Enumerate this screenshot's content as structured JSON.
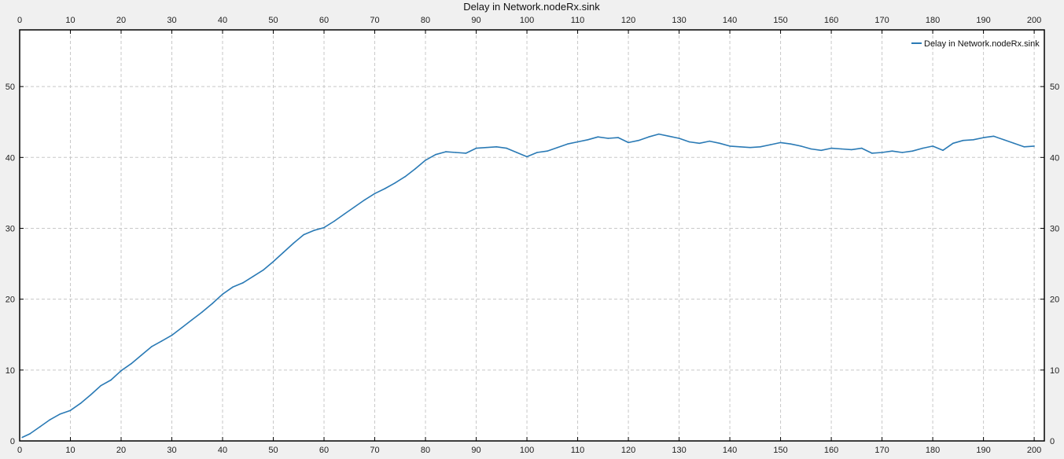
{
  "chart_data": {
    "type": "line",
    "title": "Delay in Network.nodeRx.sink",
    "xlabel": "",
    "ylabel": "",
    "xlim": [
      0,
      202
    ],
    "ylim": [
      0,
      58
    ],
    "xticks": [
      0,
      10,
      20,
      30,
      40,
      50,
      60,
      70,
      80,
      90,
      100,
      110,
      120,
      130,
      140,
      150,
      160,
      170,
      180,
      190,
      200
    ],
    "yticks": [
      0,
      10,
      20,
      30,
      40,
      50
    ],
    "grid": true,
    "legend_position": "top-right",
    "series": [
      {
        "name": "Delay in Network.nodeRx.sink",
        "color": "#2a7ab5",
        "x": [
          0.5,
          2,
          4,
          6,
          8,
          10,
          12,
          14,
          16,
          18,
          20,
          22,
          24,
          26,
          28,
          30,
          32,
          34,
          36,
          38,
          40,
          42,
          44,
          46,
          48,
          50,
          52,
          54,
          56,
          58,
          60,
          62,
          64,
          66,
          68,
          70,
          72,
          74,
          76,
          78,
          80,
          82,
          84,
          86,
          88,
          90,
          92,
          94,
          96,
          98,
          100,
          102,
          104,
          106,
          108,
          110,
          112,
          114,
          116,
          118,
          120,
          122,
          124,
          126,
          128,
          130,
          132,
          134,
          136,
          138,
          140,
          142,
          144,
          146,
          148,
          150,
          152,
          154,
          156,
          158,
          160,
          162,
          164,
          166,
          168,
          170,
          172,
          174,
          176,
          178,
          180,
          182,
          184,
          186,
          188,
          190,
          192,
          194,
          196,
          198,
          200
        ],
        "values": [
          0.5,
          1.0,
          2.0,
          3.0,
          3.8,
          4.3,
          5.3,
          6.5,
          7.8,
          8.6,
          9.9,
          10.9,
          12.1,
          13.3,
          14.1,
          14.9,
          16.0,
          17.1,
          18.2,
          19.4,
          20.7,
          21.7,
          22.3,
          23.2,
          24.1,
          25.3,
          26.6,
          27.9,
          29.1,
          29.7,
          30.1,
          31.0,
          32.0,
          33.0,
          34.0,
          34.9,
          35.6,
          36.4,
          37.3,
          38.4,
          39.6,
          40.4,
          40.8,
          40.7,
          40.6,
          41.3,
          41.4,
          41.5,
          41.3,
          40.7,
          40.1,
          40.7,
          40.9,
          41.4,
          41.9,
          42.2,
          42.5,
          42.9,
          42.7,
          42.8,
          42.1,
          42.4,
          42.9,
          43.3,
          43.0,
          42.7,
          42.2,
          42.0,
          42.3,
          42.0,
          41.6,
          41.5,
          41.4,
          41.5,
          41.8,
          42.1,
          41.9,
          41.6,
          41.2,
          41.0,
          41.3,
          41.2,
          41.1,
          41.3,
          40.6,
          40.7,
          40.9,
          40.7,
          40.9,
          41.3,
          41.6,
          41.0,
          42.0,
          42.4,
          42.5,
          42.8,
          43.0,
          42.5,
          42.0,
          41.5,
          41.6
        ]
      }
    ]
  }
}
